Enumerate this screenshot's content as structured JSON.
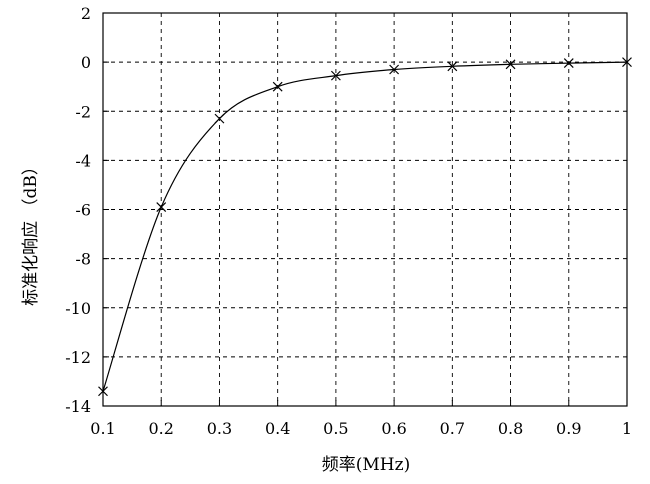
{
  "chart_data": {
    "type": "line",
    "title": "",
    "xlabel": "频率(MHz)",
    "ylabel": "标准化响应 （dB）",
    "xlim": [
      0.1,
      1
    ],
    "ylim": [
      -14,
      2
    ],
    "grid": true,
    "legend": "none",
    "x_ticks": [
      0.1,
      0.2,
      0.3,
      0.4,
      0.5,
      0.6,
      0.7,
      0.8,
      0.9,
      1
    ],
    "x_tick_labels": [
      "0.1",
      "0.2",
      "0.3",
      "0.4",
      "0.5",
      "0.6",
      "0.7",
      "0.8",
      "0.9",
      "1"
    ],
    "y_ticks": [
      2,
      0,
      -2,
      -4,
      -6,
      -8,
      -10,
      -12,
      -14
    ],
    "y_tick_labels": [
      "2",
      "0",
      "-2",
      "-4",
      "-6",
      "-8",
      "-10",
      "-12",
      "-14"
    ],
    "series": [
      {
        "marker": "x",
        "color": "#000000",
        "x": [
          0.1,
          0.2,
          0.3,
          0.4,
          0.5,
          0.6,
          0.7,
          0.8,
          0.9,
          1
        ],
        "y": [
          -13.4,
          -5.9,
          -2.3,
          -1.0,
          -0.55,
          -0.3,
          -0.17,
          -0.09,
          -0.04,
          0
        ]
      }
    ]
  }
}
